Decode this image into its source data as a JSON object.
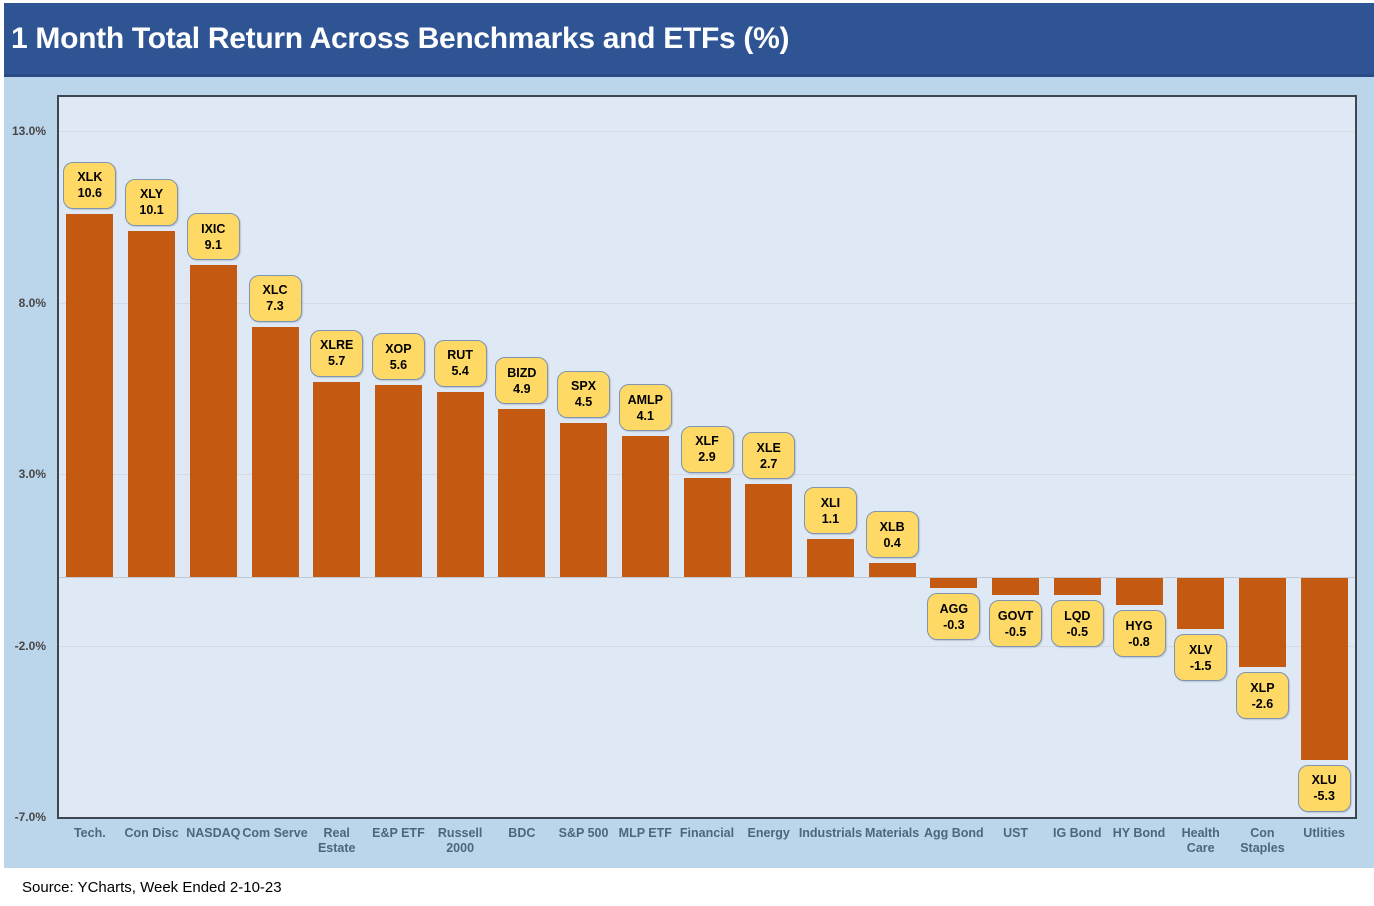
{
  "title": "1 Month Total Return Across Benchmarks and ETFs (%)",
  "source": "Source: YCharts, Week Ended 2-10-23",
  "colors": {
    "page_bg": "#FFFFFF",
    "title_bar": "#2F5494",
    "title_bar_edge": "#2A4A85",
    "title_text": "#FFFFFF",
    "canvas_bg": "#BBD5EB",
    "plot_bg": "#DEE9F5",
    "plot_border": "#404650",
    "bar": "#C45A12",
    "callout_bg": "#FFD966",
    "callout_border": "#8093AF",
    "callout_text": "#000000",
    "gridline": "#D4DAE2",
    "zero_line": "#C3C9D2",
    "y_label": "#474747",
    "x_label": "#4E657E",
    "source_text": "#000000"
  },
  "chart_data": {
    "type": "bar",
    "title": "1 Month Total Return Across Benchmarks and ETFs (%)",
    "xlabel": "",
    "ylabel": "",
    "ylim": [
      -7,
      14
    ],
    "grid": true,
    "legend": false,
    "yticks": [
      {
        "v": 13,
        "label": "13.0%"
      },
      {
        "v": 8,
        "label": "8.0%"
      },
      {
        "v": 3,
        "label": "3.0%"
      },
      {
        "v": -2,
        "label": "-2.0%"
      },
      {
        "v": -7,
        "label": "-7.0%"
      }
    ],
    "categories": [
      "Tech.",
      "Con Disc",
      "NASDAQ",
      "Com Serve",
      "Real Estate",
      "E&P ETF",
      "Russell 2000",
      "BDC",
      "S&P 500",
      "MLP ETF",
      "Financial",
      "Energy",
      "Industrials",
      "Materials",
      "Agg Bond",
      "UST",
      "IG Bond",
      "HY Bond",
      "Health Care",
      "Con Staples",
      "Utlities"
    ],
    "category_lines": [
      [
        "Tech."
      ],
      [
        "Con Disc"
      ],
      [
        "NASDAQ"
      ],
      [
        "Com Serve"
      ],
      [
        "Real",
        "Estate"
      ],
      [
        "E&P ETF"
      ],
      [
        "Russell",
        "2000"
      ],
      [
        "BDC"
      ],
      [
        "S&P 500"
      ],
      [
        "MLP ETF"
      ],
      [
        "Financial"
      ],
      [
        "Energy"
      ],
      [
        "Industrials"
      ],
      [
        "Materials"
      ],
      [
        "Agg Bond"
      ],
      [
        "UST"
      ],
      [
        "IG Bond"
      ],
      [
        "HY Bond"
      ],
      [
        "Health",
        "Care"
      ],
      [
        "Con",
        "Staples"
      ],
      [
        "Utlities"
      ]
    ],
    "tickers": [
      "XLK",
      "XLY",
      "IXIC",
      "XLC",
      "XLRE",
      "XOP",
      "RUT",
      "BIZD",
      "SPX",
      "AMLP",
      "XLF",
      "XLE",
      "XLI",
      "XLB",
      "AGG",
      "GOVT",
      "LQD",
      "HYG",
      "XLV",
      "XLP",
      "XLU"
    ],
    "values": [
      10.6,
      10.1,
      9.1,
      7.3,
      5.7,
      5.6,
      5.4,
      4.9,
      4.5,
      4.1,
      2.9,
      2.7,
      1.1,
      0.4,
      -0.3,
      -0.5,
      -0.5,
      -0.8,
      -1.5,
      -2.6,
      -5.3
    ],
    "value_labels": [
      "10.6",
      "10.1",
      "9.1",
      "7.3",
      "5.7",
      "5.6",
      "5.4",
      "4.9",
      "4.5",
      "4.1",
      "2.9",
      "2.7",
      "1.1",
      "0.4",
      "-0.3",
      "-0.5",
      "-0.5",
      "-0.8",
      "-1.5",
      "-2.6",
      "-5.3"
    ]
  }
}
